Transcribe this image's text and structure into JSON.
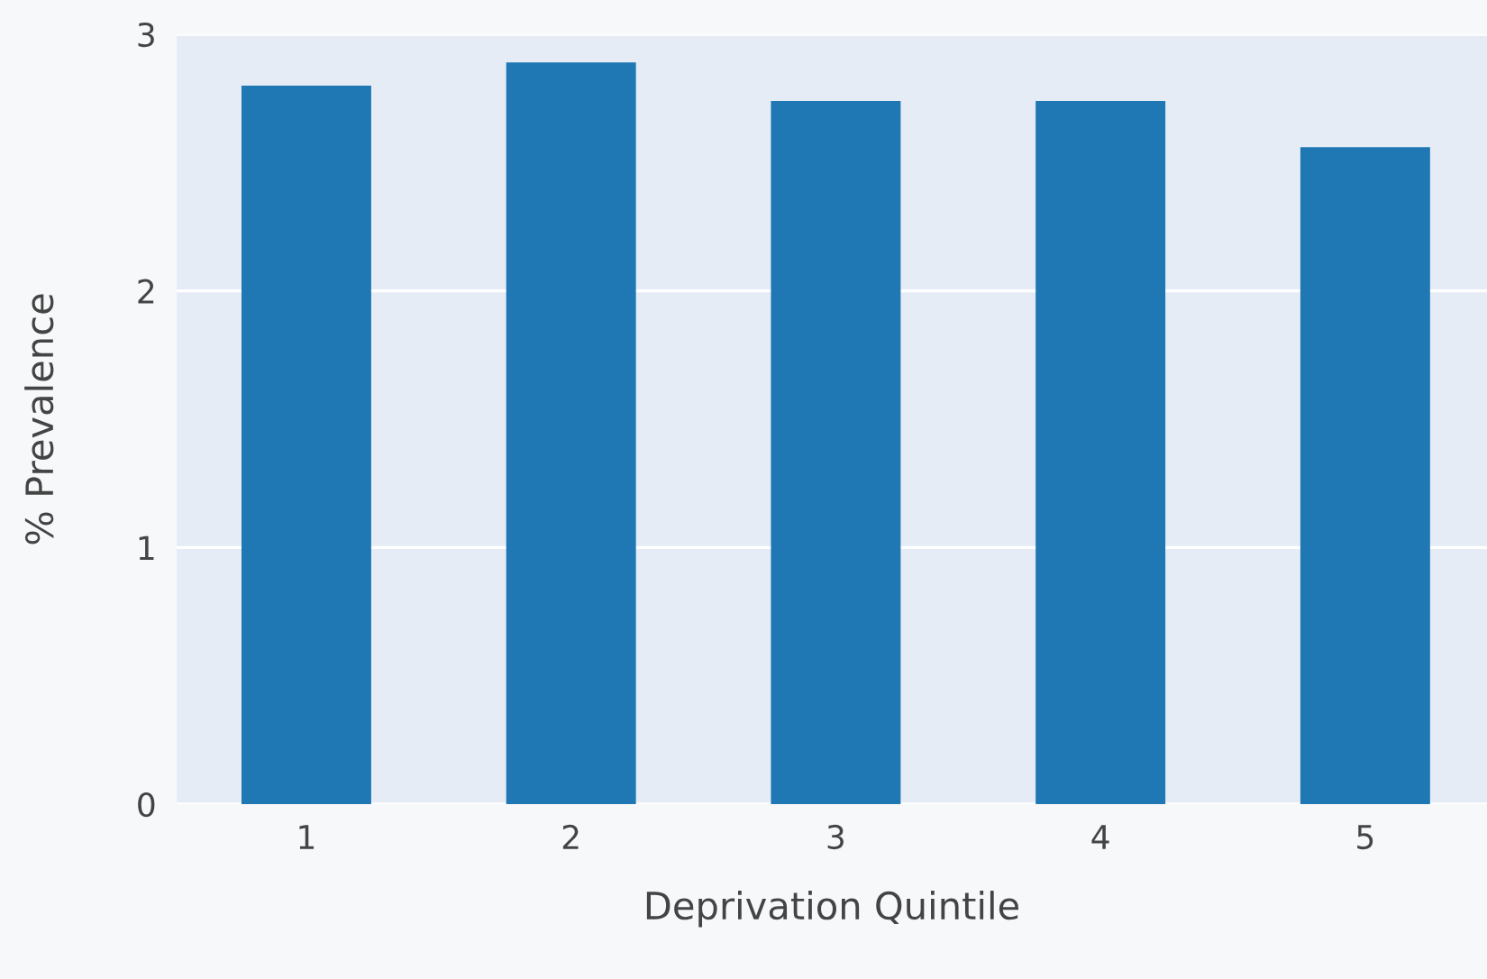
{
  "chart_data": {
    "type": "bar",
    "xlabel": "Deprivation Quintile",
    "ylabel": "% Prevalence",
    "categories": [
      "1",
      "2",
      "3",
      "4",
      "5"
    ],
    "values": [
      2.8,
      2.89,
      2.74,
      2.74,
      2.56
    ],
    "color": "#1f77b4",
    "ylim": [
      0,
      3
    ],
    "yticks": [
      0,
      1,
      2,
      3
    ],
    "grid": "y",
    "legend": false
  }
}
